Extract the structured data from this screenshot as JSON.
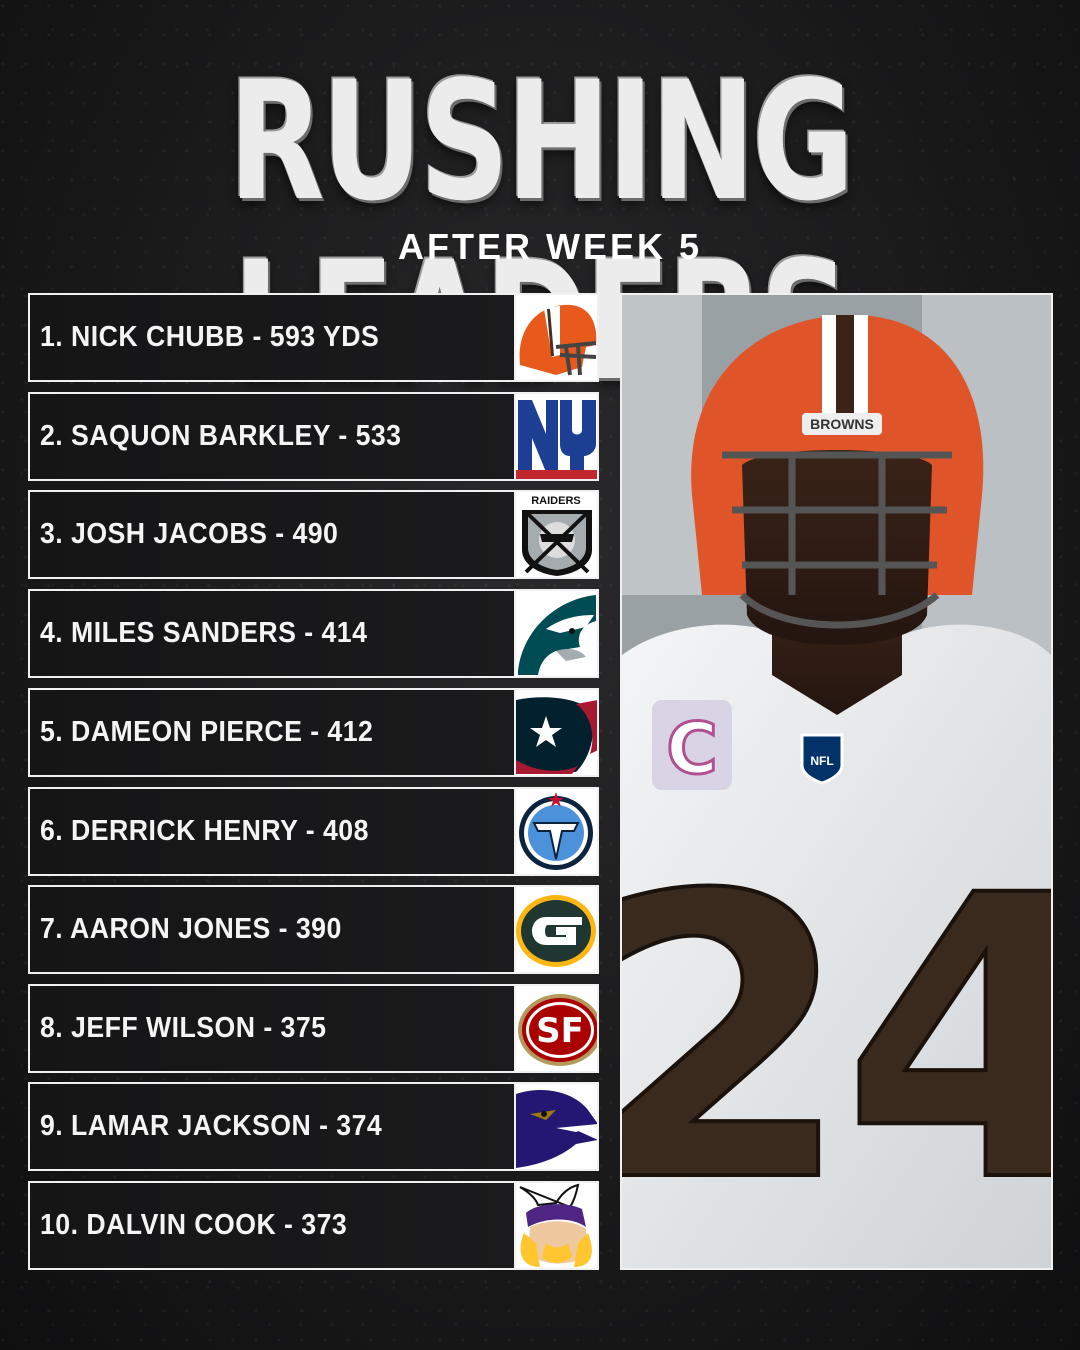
{
  "title": "RUSHING LEADERS",
  "subtitle": "AFTER WEEK 5",
  "leaders": [
    {
      "label": "1. NICK CHUBB - 593 YDS",
      "team_icon": "browns-helmet-icon"
    },
    {
      "label": "2. SAQUON BARKLEY - 533",
      "team_icon": "giants-ny-icon"
    },
    {
      "label": "3. JOSH JACOBS - 490",
      "team_icon": "raiders-shield-icon"
    },
    {
      "label": "4. MILES SANDERS - 414",
      "team_icon": "eagles-head-icon"
    },
    {
      "label": "5. DAMEON PIERCE - 412",
      "team_icon": "texans-bull-icon"
    },
    {
      "label": "6. DERRICK HENRY - 408",
      "team_icon": "titans-t-icon"
    },
    {
      "label": "7. AARON JONES - 390",
      "team_icon": "packers-g-icon"
    },
    {
      "label": "8. JEFF WILSON - 375",
      "team_icon": "49ers-sf-icon"
    },
    {
      "label": "9. LAMAR JACKSON - 374",
      "team_icon": "ravens-head-icon"
    },
    {
      "label": "10. DALVIN COOK - 373",
      "team_icon": "vikings-head-icon"
    }
  ],
  "photo": {
    "helmet_text": "BROWNS",
    "jersey_number": "24",
    "shield_text": "NFL"
  },
  "colors": {
    "background": "#1a1a1b",
    "text": "#ffffff",
    "browns_orange": "#e85a1b",
    "giants_blue": "#1c3f94",
    "giants_red": "#c1272d",
    "titans_navy": "#0c2340",
    "titans_blue": "#4b92db",
    "packers_green": "#203731",
    "packers_gold": "#ffb612",
    "niners_red": "#aa0000",
    "ravens_purple": "#241773",
    "vikings_purple": "#4f2683"
  }
}
